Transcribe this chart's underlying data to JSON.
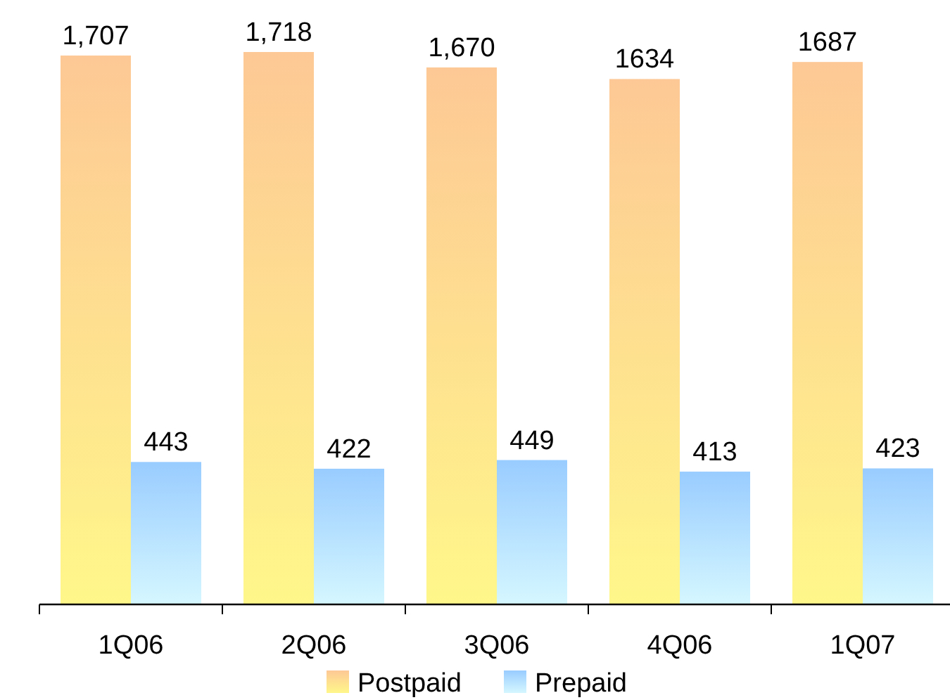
{
  "chart_data": {
    "type": "bar",
    "categories": [
      "1Q06",
      "2Q06",
      "3Q06",
      "4Q06",
      "1Q07"
    ],
    "series": [
      {
        "name": "Postpaid",
        "color": "#fdc895",
        "values": [
          1707,
          1718,
          1670,
          1634,
          1687
        ],
        "value_labels": [
          "1,707",
          "1,718",
          "1,670",
          "1634",
          "1687"
        ]
      },
      {
        "name": "Prepaid",
        "color": "#99ccff",
        "values": [
          443,
          422,
          449,
          413,
          423
        ],
        "value_labels": [
          "443",
          "422",
          "449",
          "413",
          "423"
        ]
      }
    ],
    "legend": "bottom"
  }
}
